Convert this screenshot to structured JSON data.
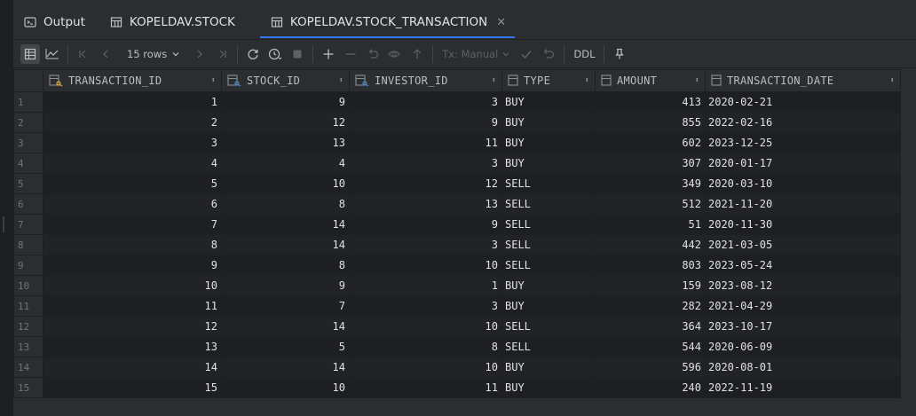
{
  "tabs": [
    {
      "label": "Output",
      "icon": "terminal-icon"
    },
    {
      "label": "KOPELDAV.STOCK",
      "icon": "table-icon"
    },
    {
      "label": "KOPELDAV.STOCK_TRANSACTION",
      "icon": "table-icon",
      "active": true
    }
  ],
  "toolbar": {
    "rows_label": "15 rows",
    "tx_label": "Tx: Manual",
    "ddl_label": "DDL"
  },
  "columns": [
    "TRANSACTION_ID",
    "STOCK_ID",
    "INVESTOR_ID",
    "TYPE",
    "AMOUNT",
    "TRANSACTION_DATE"
  ],
  "rows": [
    {
      "n": "1",
      "transaction_id": "1",
      "stock_id": "9",
      "investor_id": "3",
      "type": "BUY",
      "amount": "413",
      "date": "2020-02-21"
    },
    {
      "n": "2",
      "transaction_id": "2",
      "stock_id": "12",
      "investor_id": "9",
      "type": "BUY",
      "amount": "855",
      "date": "2022-02-16"
    },
    {
      "n": "3",
      "transaction_id": "3",
      "stock_id": "13",
      "investor_id": "11",
      "type": "BUY",
      "amount": "602",
      "date": "2023-12-25"
    },
    {
      "n": "4",
      "transaction_id": "4",
      "stock_id": "4",
      "investor_id": "3",
      "type": "BUY",
      "amount": "307",
      "date": "2020-01-17"
    },
    {
      "n": "5",
      "transaction_id": "5",
      "stock_id": "10",
      "investor_id": "12",
      "type": "SELL",
      "amount": "349",
      "date": "2020-03-10"
    },
    {
      "n": "6",
      "transaction_id": "6",
      "stock_id": "8",
      "investor_id": "13",
      "type": "SELL",
      "amount": "512",
      "date": "2021-11-20"
    },
    {
      "n": "7",
      "transaction_id": "7",
      "stock_id": "14",
      "investor_id": "9",
      "type": "SELL",
      "amount": "51",
      "date": "2020-11-30"
    },
    {
      "n": "8",
      "transaction_id": "8",
      "stock_id": "14",
      "investor_id": "3",
      "type": "SELL",
      "amount": "442",
      "date": "2021-03-05"
    },
    {
      "n": "9",
      "transaction_id": "9",
      "stock_id": "8",
      "investor_id": "10",
      "type": "SELL",
      "amount": "803",
      "date": "2023-05-24"
    },
    {
      "n": "10",
      "transaction_id": "10",
      "stock_id": "9",
      "investor_id": "1",
      "type": "BUY",
      "amount": "159",
      "date": "2023-08-12"
    },
    {
      "n": "11",
      "transaction_id": "11",
      "stock_id": "7",
      "investor_id": "3",
      "type": "BUY",
      "amount": "282",
      "date": "2021-04-29"
    },
    {
      "n": "12",
      "transaction_id": "12",
      "stock_id": "14",
      "investor_id": "10",
      "type": "SELL",
      "amount": "364",
      "date": "2023-10-17"
    },
    {
      "n": "13",
      "transaction_id": "13",
      "stock_id": "5",
      "investor_id": "8",
      "type": "SELL",
      "amount": "544",
      "date": "2020-06-09"
    },
    {
      "n": "14",
      "transaction_id": "14",
      "stock_id": "14",
      "investor_id": "10",
      "type": "BUY",
      "amount": "596",
      "date": "2020-08-01"
    },
    {
      "n": "15",
      "transaction_id": "15",
      "stock_id": "10",
      "investor_id": "11",
      "type": "BUY",
      "amount": "240",
      "date": "2022-11-19"
    }
  ],
  "colors": {
    "accent": "#3574f0",
    "key_icon": "#e0a82e",
    "column_icon": "#8c8f94"
  }
}
